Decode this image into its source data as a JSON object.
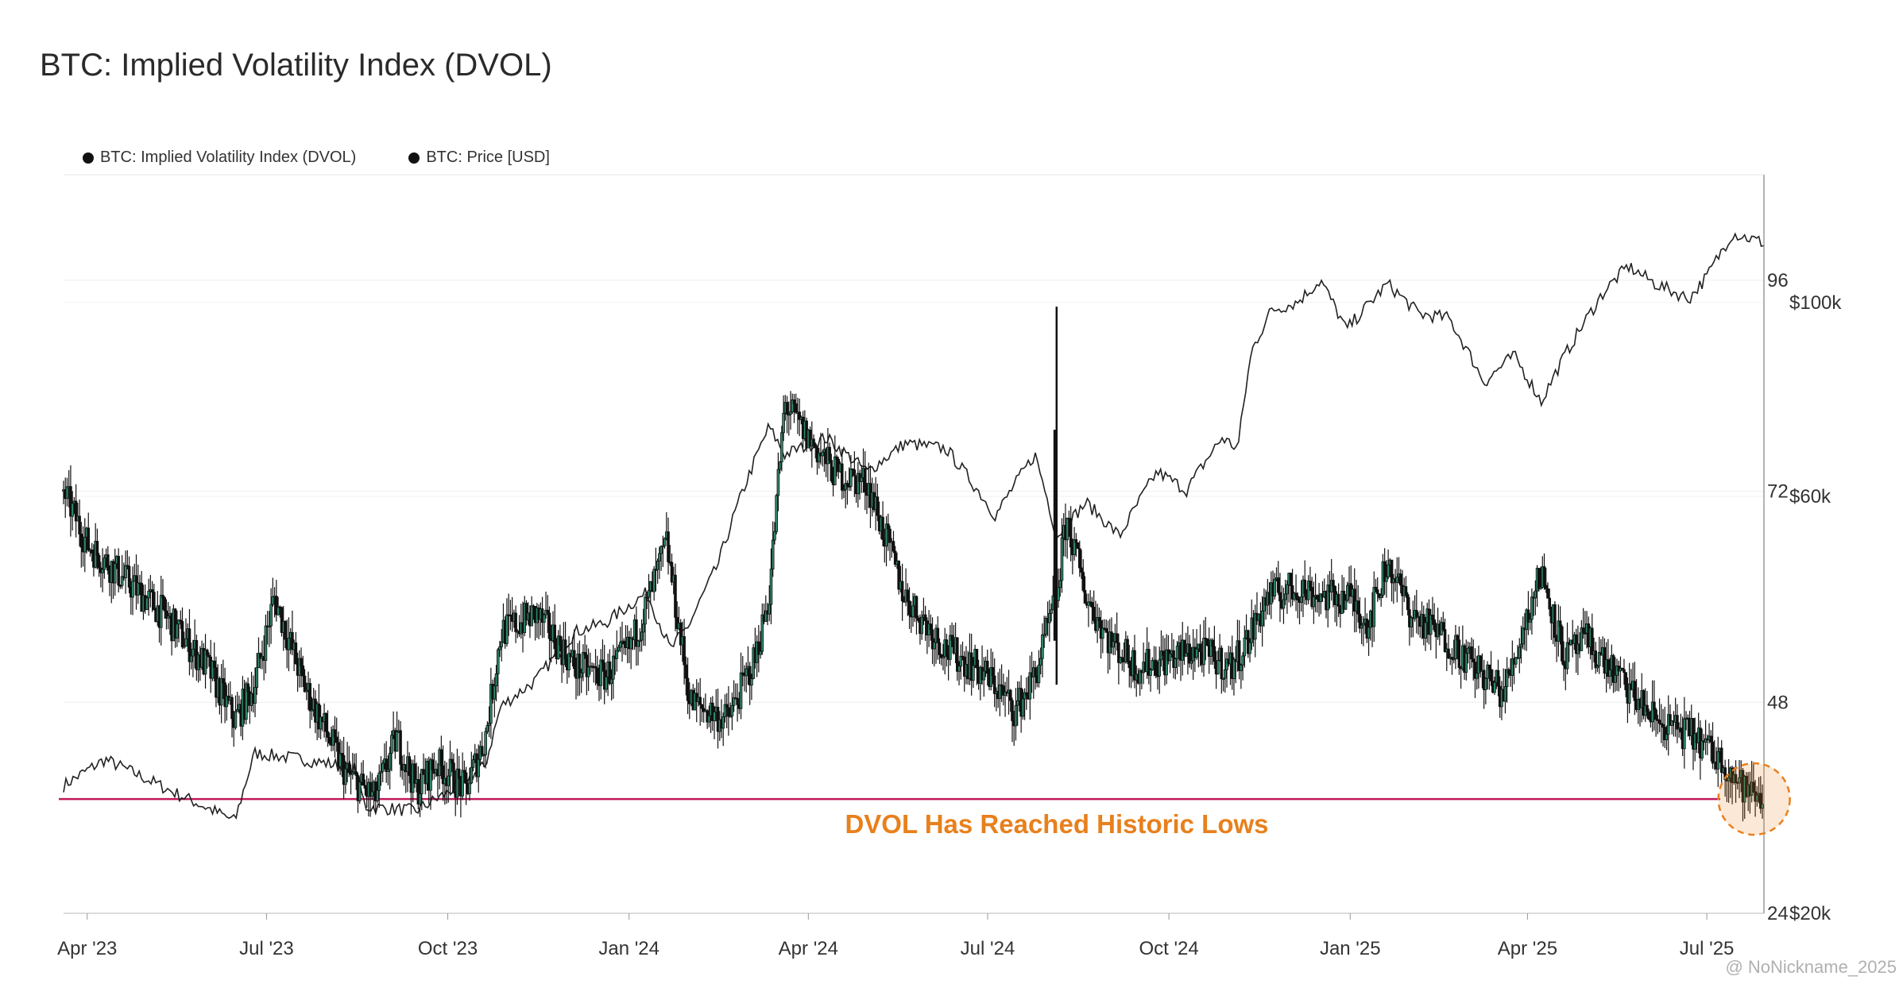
{
  "title": "BTC: Implied Volatility Index (DVOL)",
  "watermark": "@ NoNickname_2025",
  "legend": [
    {
      "label": "BTC: Implied Volatility Index (DVOL)",
      "color": "#111111"
    },
    {
      "label": "BTC: Price [USD]",
      "color": "#111111"
    }
  ],
  "chart_data": {
    "type": "line",
    "title": "BTC: Implied Volatility Index (DVOL)",
    "x_tick_labels": [
      "Apr '23",
      "Jul '23",
      "Oct '23",
      "Jan '24",
      "Apr '24",
      "Jul '24",
      "Oct '24",
      "Jan '25",
      "Apr '25",
      "Jul '25"
    ],
    "x_tick_dates": [
      "2023-04-01",
      "2023-07-01",
      "2023-10-01",
      "2024-01-01",
      "2024-04-01",
      "2024-07-01",
      "2024-10-01",
      "2025-01-01",
      "2025-04-01",
      "2025-07-01"
    ],
    "xlim": [
      "2023-03-20",
      "2025-07-30"
    ],
    "y_left": {
      "ticks": [
        24,
        48,
        72,
        96
      ],
      "ylim": [
        24,
        108
      ]
    },
    "y_right": {
      "tick_labels": [
        "$20k",
        "$60k",
        "$100k"
      ],
      "ticks": [
        20000,
        60000,
        100000
      ],
      "scale": "log",
      "ylim": [
        20000,
        140000
      ]
    },
    "grid": true,
    "legend_position": "top-left",
    "series": [
      {
        "name": "BTC: Implied Volatility Index (DVOL)",
        "axis": "left",
        "style": "candlestick",
        "x": [
          "2023-03-20",
          "2023-04-01",
          "2023-04-20",
          "2023-05-10",
          "2023-06-01",
          "2023-06-15",
          "2023-06-25",
          "2023-07-05",
          "2023-07-20",
          "2023-08-10",
          "2023-08-25",
          "2023-09-05",
          "2023-09-15",
          "2023-09-25",
          "2023-10-01",
          "2023-10-10",
          "2023-10-20",
          "2023-10-28",
          "2023-11-15",
          "2023-12-05",
          "2023-12-20",
          "2024-01-01",
          "2024-01-10",
          "2024-01-20",
          "2024-02-01",
          "2024-02-20",
          "2024-03-05",
          "2024-03-12",
          "2024-03-20",
          "2024-04-01",
          "2024-04-15",
          "2024-05-01",
          "2024-05-20",
          "2024-06-10",
          "2024-06-25",
          "2024-07-05",
          "2024-07-15",
          "2024-07-25",
          "2024-08-05",
          "2024-08-10",
          "2024-08-20",
          "2024-09-01",
          "2024-09-15",
          "2024-10-01",
          "2024-10-15",
          "2024-11-01",
          "2024-11-10",
          "2024-11-20",
          "2024-12-05",
          "2024-12-20",
          "2025-01-01",
          "2025-01-10",
          "2025-01-20",
          "2025-02-01",
          "2025-02-20",
          "2025-03-05",
          "2025-03-20",
          "2025-04-01",
          "2025-04-08",
          "2025-04-20",
          "2025-05-01",
          "2025-05-20",
          "2025-06-05",
          "2025-06-25",
          "2025-07-10",
          "2025-07-20",
          "2025-07-30"
        ],
        "values": [
          72,
          66,
          62,
          58,
          52,
          46,
          50,
          60,
          50,
          40,
          37,
          44,
          38,
          41,
          40,
          38,
          44,
          56,
          58,
          52,
          51,
          54,
          59,
          66,
          48,
          46,
          53,
          60,
          82,
          78,
          74,
          73,
          60,
          54,
          52,
          50,
          47,
          51,
          60,
          69,
          60,
          55,
          52,
          53,
          54,
          52,
          55,
          60,
          61,
          60,
          60,
          57,
          64,
          58,
          55,
          52,
          49,
          58,
          63,
          53,
          55,
          50,
          46,
          44,
          41,
          38,
          37
        ]
      },
      {
        "name": "BTC: Price [USD]",
        "axis": "right",
        "style": "line",
        "x": [
          "2023-03-20",
          "2023-04-10",
          "2023-05-15",
          "2023-06-15",
          "2023-06-25",
          "2023-07-20",
          "2023-08-15",
          "2023-08-20",
          "2023-09-15",
          "2023-10-01",
          "2023-10-20",
          "2023-10-28",
          "2023-11-15",
          "2023-12-05",
          "2023-12-20",
          "2024-01-10",
          "2024-01-22",
          "2024-02-01",
          "2024-02-15",
          "2024-02-28",
          "2024-03-12",
          "2024-03-20",
          "2024-04-10",
          "2024-05-01",
          "2024-05-20",
          "2024-06-10",
          "2024-07-05",
          "2024-07-25",
          "2024-08-05",
          "2024-08-20",
          "2024-09-06",
          "2024-09-25",
          "2024-10-10",
          "2024-10-28",
          "2024-11-05",
          "2024-11-12",
          "2024-11-22",
          "2024-12-05",
          "2024-12-17",
          "2024-12-30",
          "2025-01-20",
          "2025-02-05",
          "2025-02-20",
          "2025-03-10",
          "2025-03-25",
          "2025-04-08",
          "2025-04-20",
          "2025-05-10",
          "2025-05-22",
          "2025-06-05",
          "2025-06-22",
          "2025-07-01",
          "2025-07-14",
          "2025-07-30"
        ],
        "values": [
          28000,
          30000,
          27500,
          25500,
          30500,
          30000,
          29300,
          26500,
          26200,
          27500,
          29500,
          34500,
          37000,
          42000,
          43000,
          46500,
          40000,
          43000,
          50000,
          61000,
          72000,
          67000,
          70000,
          64000,
          69000,
          68000,
          57000,
          67000,
          54000,
          59000,
          54000,
          64000,
          61000,
          70000,
          68000,
          88000,
          98000,
          100000,
          106000,
          93000,
          105000,
          97000,
          96000,
          81000,
          87000,
          77000,
          87000,
          103000,
          110000,
          105000,
          101000,
          107000,
          120000,
          117000
        ]
      }
    ],
    "reference_line": {
      "axis": "left",
      "value": 37
    },
    "annotation": {
      "text": "DVOL Has Reached Historic Lows",
      "color": "#e8801c"
    },
    "highlight_circle": {
      "x": "2025-07-25",
      "y": 37,
      "color": "#e8801c"
    }
  }
}
